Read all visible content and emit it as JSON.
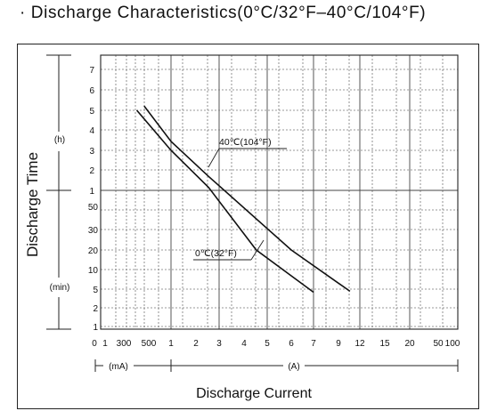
{
  "title": "· Discharge Characteristics(0°C/32°F–40°C/104°F)",
  "chart_data": {
    "type": "line",
    "title": "· Discharge Characteristics(0°C/32°F–40°C/104°F)",
    "ylabel": "Discharge Time",
    "xlabel": "Discharge Current",
    "y_unit_hours": "(h)",
    "y_unit_minutes": "(min)",
    "y_ticks_hours": [
      "7",
      "6",
      "5",
      "4",
      "3",
      "2",
      "1"
    ],
    "y_ticks_minutes": [
      "50",
      "30",
      "20",
      "10",
      "5",
      "2",
      "1"
    ],
    "x_ticks": [
      "0",
      "1",
      "300",
      "500",
      "1",
      "2",
      "3",
      "4",
      "5",
      "6",
      "7",
      "9",
      "12",
      "15",
      "20",
      "50",
      "100"
    ],
    "x_unit_ma": "(mA)",
    "x_unit_a": "(A)",
    "grid": true,
    "x_scale": "log (current in mA for 100–500, A for 1–100)",
    "series": [
      {
        "name": "40℃(104°F)",
        "points": [
          {
            "current_ma": 450,
            "time_h": 5.2
          },
          {
            "current_ma": 1000,
            "time_h": 3.4
          },
          {
            "current_ma": 2500,
            "time_h": 1.6
          },
          {
            "current_ma": 6000,
            "time_min": 20
          },
          {
            "current_ma": 10500,
            "time_min": 4.5
          }
        ]
      },
      {
        "name": "0℃(32°F)",
        "points": [
          {
            "current_ma": 380,
            "time_h": 5.0
          },
          {
            "current_ma": 1000,
            "time_h": 3.0
          },
          {
            "current_ma": 2500,
            "time_h": 1.1
          },
          {
            "current_ma": 4500,
            "time_min": 20
          },
          {
            "current_ma": 7000,
            "time_min": 4.3
          }
        ]
      }
    ]
  }
}
